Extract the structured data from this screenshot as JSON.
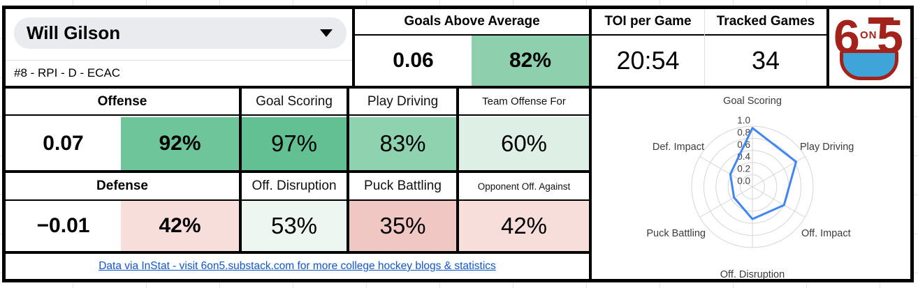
{
  "player": {
    "name": "Will Gilson",
    "details": "#8 - RPI - D - ECAC"
  },
  "summary": {
    "goals_above_average": {
      "label": "Goals Above Average",
      "value": "0.06",
      "percentile": "82%",
      "percentile_color": "#8ed0ae"
    },
    "toi_per_game": {
      "label": "TOI per Game",
      "value": "20:54"
    },
    "tracked_games": {
      "label": "Tracked Games",
      "value": "34"
    }
  },
  "offense": {
    "label": "Offense",
    "value": "0.07",
    "percentile": "92%",
    "percentile_color": "#6ec59a",
    "stats": [
      {
        "label": "Goal Scoring",
        "value": "97%",
        "color": "#62c093"
      },
      {
        "label": "Play Driving",
        "value": "83%",
        "color": "#8fd2b0"
      },
      {
        "label": "Team Offense For",
        "value": "60%",
        "color": "#def0e6"
      }
    ]
  },
  "defense": {
    "label": "Defense",
    "value": "−0.01",
    "percentile": "42%",
    "percentile_color": "#f8dedb",
    "stats": [
      {
        "label": "Off. Disruption",
        "value": "53%",
        "color": "#edf6f1"
      },
      {
        "label": "Puck Battling",
        "value": "35%",
        "color": "#f1c7c3"
      },
      {
        "label": "Opponent Off. Against",
        "value": "42%",
        "color": "#f8dedb"
      }
    ]
  },
  "footer": {
    "link_text": "Data via InStat - visit 6on5.substack.com for more college hockey blogs & statistics",
    "link_color": "#1155cc"
  },
  "logo": {
    "six": "6",
    "on": "ON",
    "five": "5"
  },
  "brand": {
    "red": "#a3231c",
    "blue": "#3fa5d9"
  },
  "chart_data": {
    "type": "radar",
    "categories": [
      "Goal Scoring",
      "Play Driving",
      "Off. Impact",
      "Off. Disruption",
      "Puck Battling",
      "Def. Impact"
    ],
    "values": [
      0.97,
      0.83,
      0.6,
      0.53,
      0.35,
      0.42
    ],
    "ticks": [
      0.0,
      0.2,
      0.4,
      0.6,
      0.8,
      1.0
    ],
    "rmax": 1.0,
    "line_color": "#4285f4",
    "grid_color": "#d6d6d6",
    "legend": "none",
    "fill": "none"
  }
}
